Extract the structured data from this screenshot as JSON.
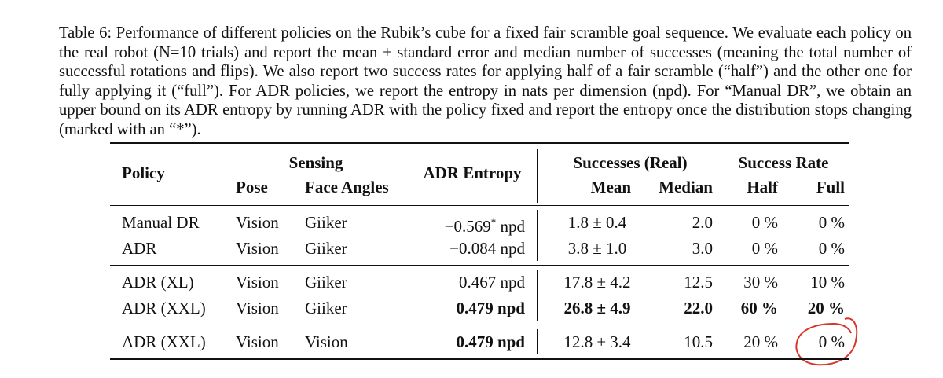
{
  "caption": "Table 6: Performance of different policies on the Rubik’s cube for a fixed fair scramble goal sequence. We evaluate each policy on the real robot (N=10 trials) and report the mean ± standard error and median number of successes (meaning the total number of successful rotations and flips). We also report two success rates for applying half of a fair scramble (“half”) and the other one for fully applying it (“full”). For ADR policies, we report the entropy in nats per dimension (npd). For “Manual DR”, we obtain an upper bound on its ADR entropy by running ADR with the policy fixed and report the entropy once the distribution stops changing (marked with an “*”).",
  "table": {
    "header": {
      "policy": "Policy",
      "sensing": "Sensing",
      "pose": "Pose",
      "face_angles": "Face Angles",
      "adr_entropy": "ADR Entropy",
      "successes": "Successes (Real)",
      "mean": "Mean",
      "median": "Median",
      "success_rate": "Success Rate",
      "half": "Half",
      "full": "Full"
    },
    "groups": [
      [
        {
          "cells": [
            "Manual DR",
            "Vision",
            "Giiker",
            {
              "text": "−0.569",
              "sup": "*",
              "suffix": "npd"
            },
            "1.8 ± 0.4",
            "2.0",
            "0 %",
            "0 %"
          ],
          "bold": []
        },
        {
          "cells": [
            "ADR",
            "Vision",
            "Giiker",
            "−0.084 npd",
            "3.8 ± 1.0",
            "3.0",
            "0 %",
            "0 %"
          ],
          "bold": []
        }
      ],
      [
        {
          "cells": [
            "ADR (XL)",
            "Vision",
            "Giiker",
            "0.467 npd",
            "17.8 ± 4.2",
            "12.5",
            "30 %",
            "10 %"
          ],
          "bold": []
        },
        {
          "cells": [
            "ADR (XXL)",
            "Vision",
            "Giiker",
            "0.479 npd",
            "26.8 ± 4.9",
            "22.0",
            "60 %",
            "20 %"
          ],
          "bold": [
            3,
            4,
            5,
            6,
            7
          ]
        }
      ],
      [
        {
          "cells": [
            "ADR (XXL)",
            "Vision",
            "Vision",
            "0.479 npd",
            "12.8 ± 3.4",
            "10.5",
            "20 %",
            "0 %"
          ],
          "bold": [
            3
          ]
        }
      ]
    ]
  }
}
